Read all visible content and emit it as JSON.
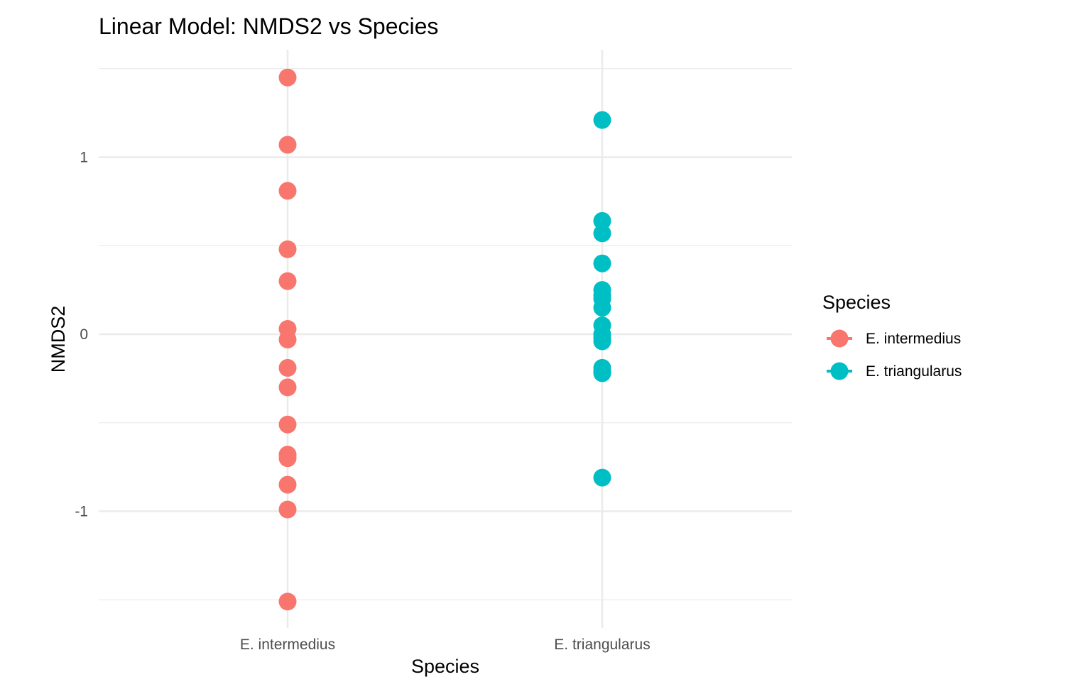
{
  "chart_data": {
    "type": "scatter",
    "title": "Linear Model: NMDS2 vs Species",
    "xlabel": "Species",
    "ylabel": "NMDS2",
    "categories": [
      "E. intermedius",
      "E. triangularus"
    ],
    "ylim": [
      -1.55,
      1.6
    ],
    "y_ticks": [
      -1,
      0,
      1
    ],
    "y_tick_labels": [
      "-1",
      "0",
      "1"
    ],
    "y_minor_ticks": [
      -1.5,
      -0.5,
      0.5,
      1.5
    ],
    "grid": true,
    "legend": {
      "title": "Species",
      "position": "right"
    },
    "series": [
      {
        "name": "E. intermedius",
        "color": "#F8766D",
        "category": "E. intermedius",
        "values": [
          1.45,
          1.07,
          0.81,
          0.48,
          0.3,
          0.03,
          -0.03,
          -0.19,
          -0.3,
          -0.51,
          -0.68,
          -0.7,
          -0.85,
          -0.99,
          -1.51
        ]
      },
      {
        "name": "E. triangularus",
        "color": "#00BFC4",
        "category": "E. triangularus",
        "values": [
          1.21,
          0.64,
          0.57,
          0.4,
          0.25,
          0.22,
          0.2,
          0.15,
          0.05,
          0.0,
          -0.02,
          -0.04,
          -0.19,
          -0.21,
          -0.22,
          -0.81
        ]
      }
    ]
  }
}
